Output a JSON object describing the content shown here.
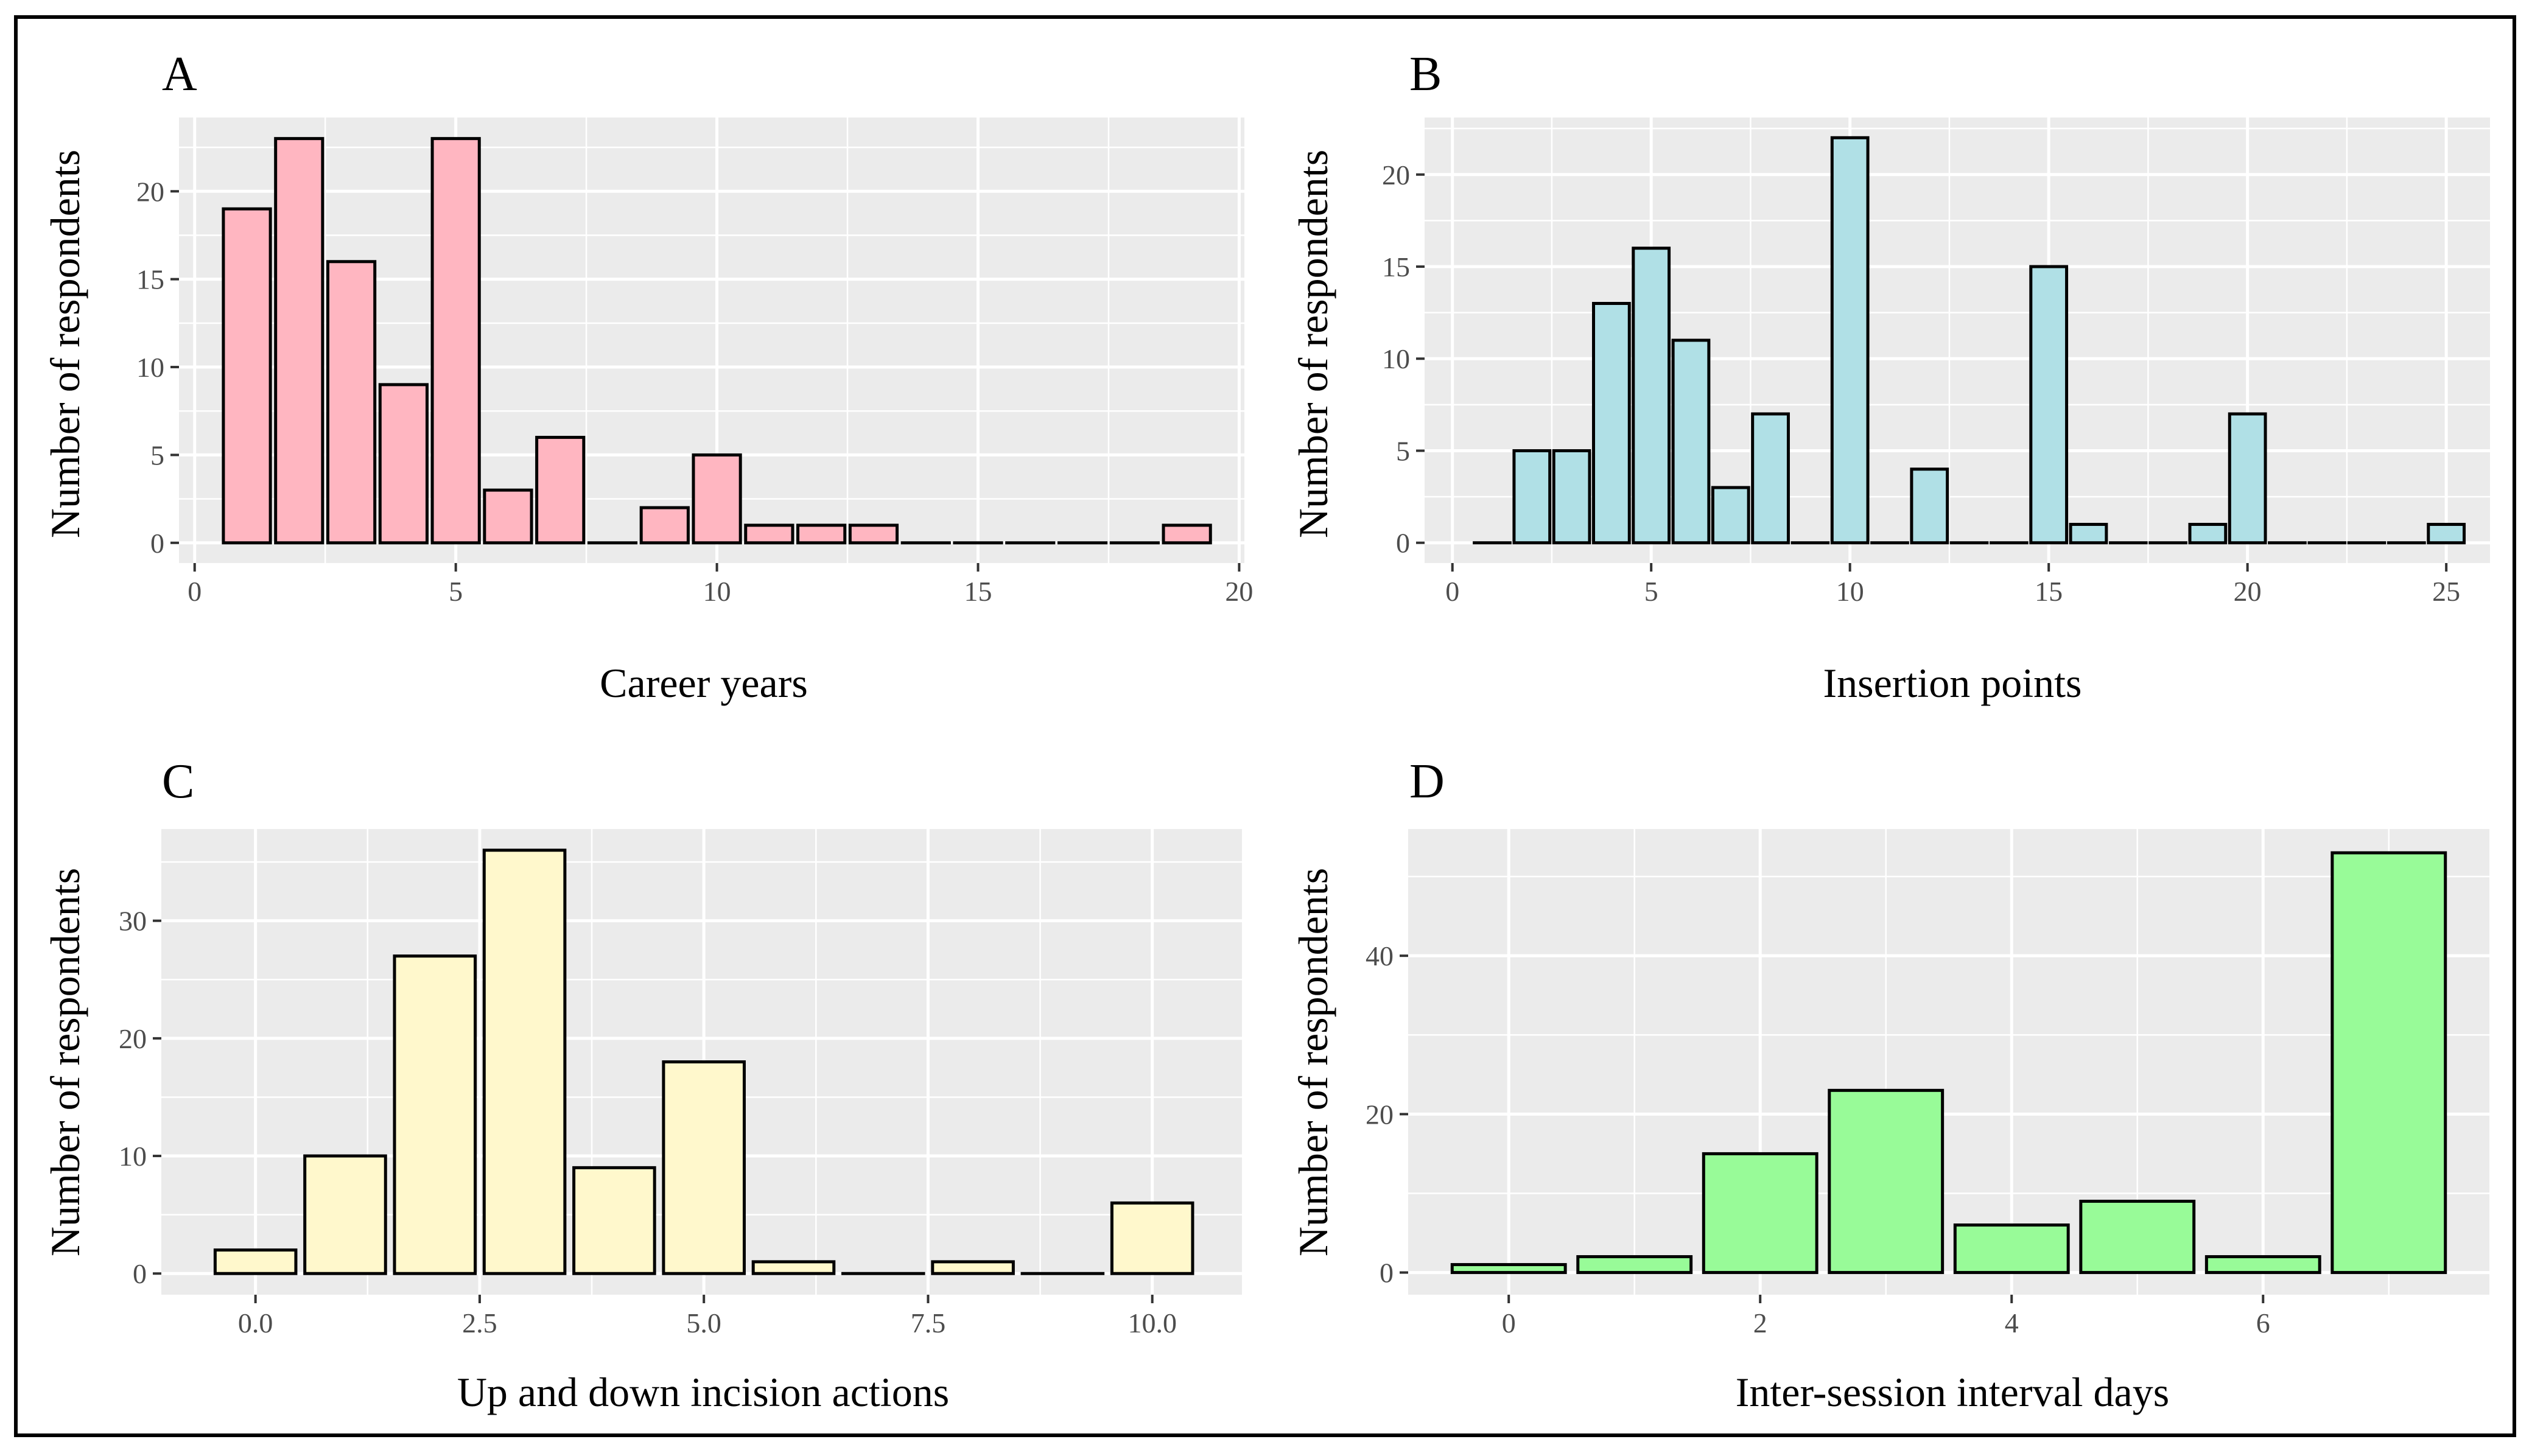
{
  "chart_data": [
    {
      "panel": "A",
      "type": "bar",
      "xlabel": "Career years",
      "ylabel": "Number of respondents",
      "fill": "#FFB6C1",
      "bin_width": 1,
      "x": [
        1,
        2,
        3,
        4,
        5,
        6,
        7,
        8,
        9,
        10,
        11,
        12,
        13,
        14,
        15,
        16,
        17,
        18,
        19
      ],
      "values": [
        19,
        23,
        16,
        9,
        23,
        3,
        6,
        0,
        2,
        5,
        1,
        1,
        1,
        0,
        0,
        0,
        0,
        0,
        1
      ],
      "xlim": [
        -0.3,
        20.1
      ],
      "ylim": [
        -1.15,
        24.2
      ],
      "xticks": [
        0,
        5,
        10,
        15,
        20
      ],
      "xtick_labels": [
        "0",
        "5",
        "10",
        "15",
        "20"
      ],
      "yticks": [
        0,
        5,
        10,
        15,
        20
      ],
      "ytick_labels": [
        "0",
        "5",
        "10",
        "15",
        "20"
      ]
    },
    {
      "panel": "B",
      "type": "bar",
      "xlabel": "Insertion points",
      "ylabel": "Number of respondents",
      "fill": "#B0E0E6",
      "bin_width": 1,
      "x": [
        1,
        2,
        3,
        4,
        5,
        6,
        7,
        8,
        9,
        10,
        11,
        12,
        13,
        14,
        15,
        16,
        17,
        18,
        19,
        20,
        21,
        22,
        23,
        24,
        25
      ],
      "values": [
        0,
        5,
        5,
        13,
        16,
        11,
        3,
        7,
        0,
        22,
        0,
        4,
        0,
        0,
        15,
        1,
        0,
        0,
        1,
        7,
        0,
        0,
        0,
        0,
        1
      ],
      "xlim": [
        -0.7,
        26.1
      ],
      "ylim": [
        -1.1,
        23.1
      ],
      "xticks": [
        0,
        5,
        10,
        15,
        20,
        25
      ],
      "xtick_labels": [
        "0",
        "5",
        "10",
        "15",
        "20",
        "25"
      ],
      "yticks": [
        0,
        5,
        10,
        15,
        20
      ],
      "ytick_labels": [
        "0",
        "5",
        "10",
        "15",
        "20"
      ]
    },
    {
      "panel": "C",
      "type": "bar",
      "xlabel": "Up and down incision actions",
      "ylabel": "Number of respondents",
      "fill": "#FFF8CC",
      "bin_width": 1,
      "x": [
        0,
        1,
        2,
        3,
        4,
        5,
        6,
        7,
        8,
        9,
        10
      ],
      "values": [
        2,
        10,
        27,
        36,
        9,
        18,
        1,
        0,
        1,
        0,
        6
      ],
      "xlim": [
        -1.05,
        11.0
      ],
      "ylim": [
        -1.8,
        37.8
      ],
      "xticks": [
        0,
        2.5,
        5,
        7.5,
        10
      ],
      "xtick_labels": [
        "0.0",
        "2.5",
        "5.0",
        "7.5",
        "10.0"
      ],
      "yticks": [
        0,
        10,
        20,
        30
      ],
      "ytick_labels": [
        "0",
        "10",
        "20",
        "30"
      ]
    },
    {
      "panel": "D",
      "type": "bar",
      "xlabel": "Inter-session interval days",
      "ylabel": "Number of respondents",
      "fill": "#98FB98",
      "bin_width": 1,
      "x": [
        0,
        1,
        2,
        3,
        4,
        5,
        6,
        7
      ],
      "values": [
        1,
        2,
        15,
        23,
        6,
        9,
        2,
        53
      ],
      "xlim": [
        -0.8,
        7.8
      ],
      "ylim": [
        -2.8,
        56.0
      ],
      "xticks": [
        0,
        2,
        4,
        6
      ],
      "xtick_labels": [
        "0",
        "2",
        "4",
        "6"
      ],
      "yticks": [
        0,
        20,
        40
      ],
      "ytick_labels": [
        "0",
        "20",
        "40"
      ]
    }
  ],
  "style": {
    "panel_background": "#EBEBEB",
    "grid_color": "#FFFFFF",
    "bar_outline": "#000000",
    "tick_text": "#4D4D4D",
    "border": "#000000"
  }
}
